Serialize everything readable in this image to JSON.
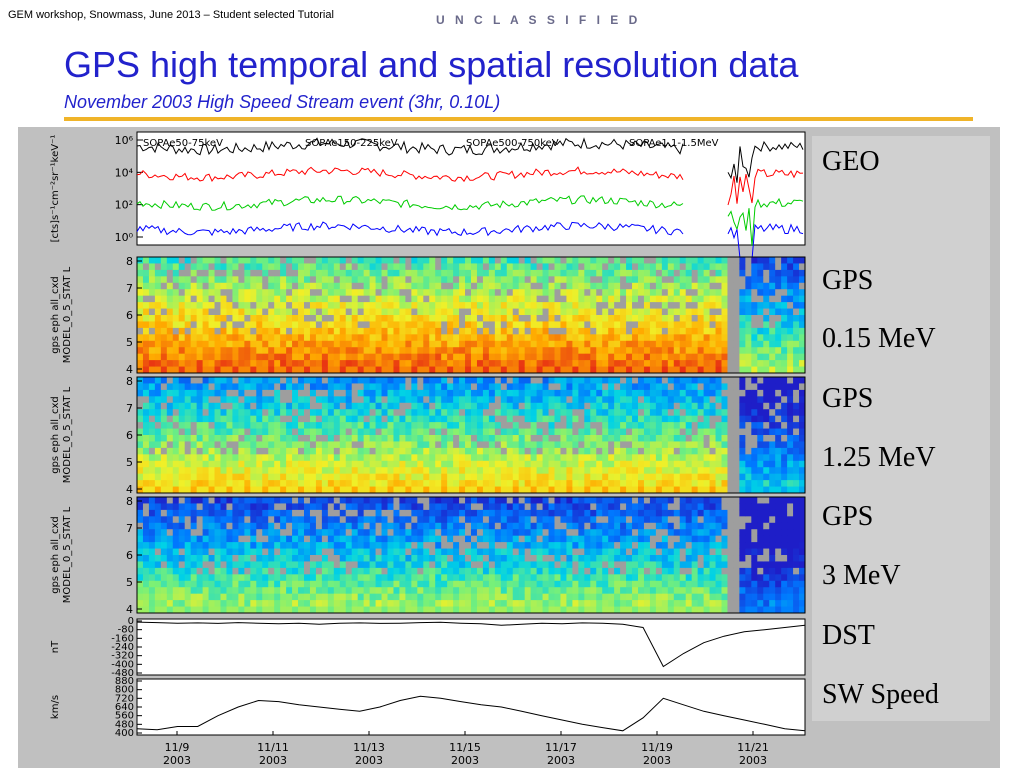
{
  "header": {
    "note": "GEM workshop, Snowmass, June 2013 – Student selected Tutorial",
    "classification": "U N C L A S S I F I E D",
    "title": "GPS high temporal and spatial resolution data",
    "subtitle": "November 2003 High Speed Stream event (3hr, 0.10L)"
  },
  "panel_labels": {
    "geo": "GEO",
    "gps1_a": "GPS",
    "gps1_b": "0.15 MeV",
    "gps2_a": "GPS",
    "gps2_b": "1.25 MeV",
    "gps3_a": "GPS",
    "gps3_b": "3 MeV",
    "dst": "DST",
    "sw": "SW Speed"
  },
  "axis_titles": {
    "geo": "[cts]s⁻¹cm⁻²sr⁻¹keV⁻¹",
    "gps": "gps eph all_cxd",
    "gps_model": "MODEL_0_5_STAT L",
    "dst": "nT",
    "sw": "km/s"
  },
  "chart_data": [
    {
      "type": "line",
      "panel": "GEO",
      "y_scale": "log",
      "ylim": [
        1,
        1000000
      ],
      "y_ticks": [
        "10⁰",
        "10²",
        "10⁴",
        "10⁶"
      ],
      "series": [
        {
          "name": "SOPAe50-75keV",
          "color": "#000000",
          "level": 5.6
        },
        {
          "name": "SOPAe150-225keV",
          "color": "#ff0000",
          "level": 3.9
        },
        {
          "name": "SOPAe500-750keV",
          "color": "#00cc00",
          "level": 2.1
        },
        {
          "name": "SOPAe1.1-1.5MeV",
          "color": "#0000ff",
          "level": 0.5
        }
      ]
    },
    {
      "type": "heatmap",
      "panel": "GPS 0.15 MeV",
      "ylim": [
        4,
        8
      ],
      "y_ticks": [
        "4",
        "5",
        "6",
        "7",
        "8"
      ],
      "base_intensity": 0.55
    },
    {
      "type": "heatmap",
      "panel": "GPS 1.25 MeV",
      "ylim": [
        4,
        8
      ],
      "y_ticks": [
        "4",
        "5",
        "6",
        "7",
        "8"
      ],
      "base_intensity": 0.35
    },
    {
      "type": "heatmap",
      "panel": "GPS 3 MeV",
      "ylim": [
        4,
        8
      ],
      "y_ticks": [
        "4",
        "5",
        "6",
        "7",
        "8"
      ],
      "base_intensity": 0.2
    },
    {
      "type": "line",
      "panel": "DST",
      "ylim": [
        -480,
        0
      ],
      "y_ticks": [
        "0",
        "-80",
        "-160",
        "-240",
        "-320",
        "-400",
        "-480"
      ],
      "values": [
        -10,
        -15,
        -20,
        -18,
        -22,
        -15,
        -20,
        -25,
        -20,
        -30,
        -20,
        -18,
        -22,
        -20,
        -15,
        -12,
        -20,
        -25,
        -40,
        -30,
        -20,
        -25,
        -18,
        -20,
        -30,
        -60,
        -420,
        -300,
        -200,
        -140,
        -100,
        -80,
        -60,
        -40
      ]
    },
    {
      "type": "line",
      "panel": "SW Speed",
      "ylim": [
        400,
        880
      ],
      "y_ticks": [
        "400",
        "480",
        "560",
        "640",
        "720",
        "800",
        "880"
      ],
      "values": [
        440,
        430,
        460,
        460,
        560,
        640,
        700,
        690,
        660,
        640,
        620,
        600,
        640,
        700,
        740,
        720,
        690,
        660,
        640,
        600,
        560,
        520,
        480,
        450,
        420,
        540,
        720,
        660,
        600,
        560,
        520,
        480,
        440,
        420
      ]
    }
  ],
  "x_ticks": [
    {
      "date": "11/9",
      "year": "2003"
    },
    {
      "date": "11/11",
      "year": "2003"
    },
    {
      "date": "11/13",
      "year": "2003"
    },
    {
      "date": "11/15",
      "year": "2003"
    },
    {
      "date": "11/17",
      "year": "2003"
    },
    {
      "date": "11/19",
      "year": "2003"
    },
    {
      "date": "11/21",
      "year": "2003"
    }
  ]
}
